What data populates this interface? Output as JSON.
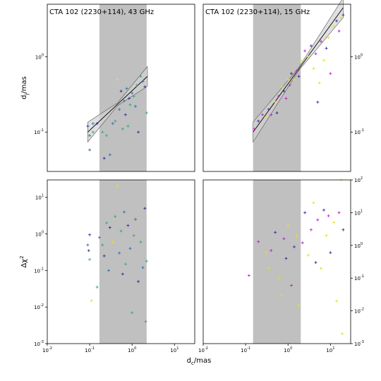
{
  "figure": {
    "xlabel_shared": "d_c/mas",
    "colors": {
      "shade": "#c0c0c0",
      "band": "#d3d3d3",
      "fit_line": "#000000"
    }
  },
  "chart_data": [
    {
      "type": "scatter",
      "panel": "top-left",
      "title": "CTA 102 (2230+114), 43 GHz",
      "ylabel": "d_j/mas",
      "xscale": "log",
      "yscale": "log",
      "xlim": [
        0.01,
        30
      ],
      "ylim": [
        0.03,
        5
      ],
      "x_ticks": [],
      "y_ticks": [
        "10^-1",
        "10^0"
      ],
      "shaded_x": [
        0.17,
        2.2
      ],
      "fit_line": {
        "x": [
          0.09,
          2.3
        ],
        "y": [
          0.1,
          0.55
        ]
      },
      "points": [
        {
          "x": 0.09,
          "y": 0.12,
          "c": "#3a2a9a"
        },
        {
          "x": 0.1,
          "y": 0.09,
          "c": "#2f6fa8"
        },
        {
          "x": 0.1,
          "y": 0.058,
          "c": "#2f6fa8"
        },
        {
          "x": 0.12,
          "y": 0.13,
          "c": "#2f6fa8"
        },
        {
          "x": 0.12,
          "y": 0.1,
          "c": "#33aa77"
        },
        {
          "x": 0.15,
          "y": 0.13,
          "c": "#3a2a9a"
        },
        {
          "x": 0.2,
          "y": 0.1,
          "c": "#33aa77"
        },
        {
          "x": 0.22,
          "y": 0.045,
          "c": "#3a2a9a"
        },
        {
          "x": 0.25,
          "y": 0.09,
          "c": "#33aa77"
        },
        {
          "x": 0.3,
          "y": 0.05,
          "c": "#2f6fa8"
        },
        {
          "x": 0.35,
          "y": 0.13,
          "c": "#2f6fa8"
        },
        {
          "x": 0.4,
          "y": 0.14,
          "c": "#33aa77"
        },
        {
          "x": 0.45,
          "y": 0.5,
          "c": "#e8e020"
        },
        {
          "x": 0.5,
          "y": 0.2,
          "c": "#2f6fa8"
        },
        {
          "x": 0.55,
          "y": 0.35,
          "c": "#3a2a9a"
        },
        {
          "x": 0.6,
          "y": 0.11,
          "c": "#33aa77"
        },
        {
          "x": 0.65,
          "y": 0.26,
          "c": "#2f6fa8"
        },
        {
          "x": 0.7,
          "y": 0.17,
          "c": "#3a2a9a"
        },
        {
          "x": 0.75,
          "y": 0.38,
          "c": "#2f6fa8"
        },
        {
          "x": 0.8,
          "y": 0.12,
          "c": "#33aa77"
        },
        {
          "x": 0.85,
          "y": 0.28,
          "c": "#3a2a9a"
        },
        {
          "x": 0.9,
          "y": 0.23,
          "c": "#33aa77"
        },
        {
          "x": 1.0,
          "y": 0.33,
          "c": "#2f6fa8"
        },
        {
          "x": 1.1,
          "y": 0.3,
          "c": "#33aa77"
        },
        {
          "x": 1.2,
          "y": 0.22,
          "c": "#2f6fa8"
        },
        {
          "x": 1.3,
          "y": 0.42,
          "c": "#33aa77"
        },
        {
          "x": 1.4,
          "y": 0.1,
          "c": "#3a2a9a"
        },
        {
          "x": 1.6,
          "y": 0.55,
          "c": "#33aa77"
        },
        {
          "x": 1.8,
          "y": 0.47,
          "c": "#2f6fa8"
        },
        {
          "x": 2.0,
          "y": 0.4,
          "c": "#3a2a9a"
        },
        {
          "x": 2.2,
          "y": 0.18,
          "c": "#33aa77"
        }
      ]
    },
    {
      "type": "scatter",
      "panel": "top-right",
      "title": "CTA 102 (2230+114), 15 GHz",
      "ylabel": "",
      "xscale": "log",
      "yscale": "log",
      "xlim": [
        0.01,
        30
      ],
      "ylim": [
        0.03,
        5
      ],
      "x_ticks": [],
      "y_ticks": [
        "10^-1",
        "10^0"
      ],
      "shaded_x": [
        0.15,
        2.0
      ],
      "fit_line": {
        "x": [
          0.15,
          20
        ],
        "y": [
          0.1,
          4.5
        ]
      },
      "points": [
        {
          "x": 0.16,
          "y": 0.11,
          "c": "#c020c0"
        },
        {
          "x": 0.2,
          "y": 0.14,
          "c": "#3a2a9a"
        },
        {
          "x": 0.25,
          "y": 0.17,
          "c": "#c020c0"
        },
        {
          "x": 0.3,
          "y": 0.16,
          "c": "#e8e020"
        },
        {
          "x": 0.35,
          "y": 0.2,
          "c": "#3a2a9a"
        },
        {
          "x": 0.4,
          "y": 0.17,
          "c": "#c020c0"
        },
        {
          "x": 0.5,
          "y": 0.25,
          "c": "#e8e020"
        },
        {
          "x": 0.55,
          "y": 0.18,
          "c": "#3a2a9a"
        },
        {
          "x": 0.6,
          "y": 0.3,
          "c": "#c020c0"
        },
        {
          "x": 0.7,
          "y": 0.4,
          "c": "#e8e020"
        },
        {
          "x": 0.8,
          "y": 0.35,
          "c": "#3a2a9a"
        },
        {
          "x": 0.9,
          "y": 0.28,
          "c": "#c020c0"
        },
        {
          "x": 1.0,
          "y": 0.5,
          "c": "#e8e020"
        },
        {
          "x": 1.1,
          "y": 0.42,
          "c": "#c020c0"
        },
        {
          "x": 1.2,
          "y": 0.6,
          "c": "#3a2a9a"
        },
        {
          "x": 1.4,
          "y": 0.5,
          "c": "#e8e020"
        },
        {
          "x": 1.6,
          "y": 0.65,
          "c": "#c020c0"
        },
        {
          "x": 1.8,
          "y": 0.55,
          "c": "#3a2a9a"
        },
        {
          "x": 2.0,
          "y": 0.9,
          "c": "#e8e020"
        },
        {
          "x": 2.5,
          "y": 1.2,
          "c": "#c020c0"
        },
        {
          "x": 3.0,
          "y": 1.0,
          "c": "#e8e020"
        },
        {
          "x": 3.5,
          "y": 1.4,
          "c": "#3a2a9a"
        },
        {
          "x": 4.0,
          "y": 0.7,
          "c": "#e8e020"
        },
        {
          "x": 4.5,
          "y": 1.1,
          "c": "#c020c0"
        },
        {
          "x": 5.0,
          "y": 0.25,
          "c": "#3a2a9a"
        },
        {
          "x": 5.5,
          "y": 0.45,
          "c": "#e8e020"
        },
        {
          "x": 6.0,
          "y": 1.6,
          "c": "#c020c0"
        },
        {
          "x": 7.0,
          "y": 0.9,
          "c": "#e8e020"
        },
        {
          "x": 8.0,
          "y": 1.3,
          "c": "#3a2a9a"
        },
        {
          "x": 9.0,
          "y": 1.8,
          "c": "#e8e020"
        },
        {
          "x": 10.0,
          "y": 0.6,
          "c": "#c020c0"
        },
        {
          "x": 12.0,
          "y": 2.5,
          "c": "#e8e020"
        },
        {
          "x": 14.0,
          "y": 3.0,
          "c": "#3a2a9a"
        },
        {
          "x": 16.0,
          "y": 2.2,
          "c": "#c020c0"
        },
        {
          "x": 18.0,
          "y": 3.3,
          "c": "#e8e020"
        },
        {
          "x": 20.0,
          "y": 3.6,
          "c": "#3a2a9a"
        }
      ]
    },
    {
      "type": "scatter",
      "panel": "bottom-left",
      "title": "",
      "ylabel": "Δχ^2",
      "xscale": "log",
      "yscale": "log",
      "xlim": [
        0.01,
        30
      ],
      "ylim": [
        0.001,
        30
      ],
      "x_ticks": [
        "10^-2",
        "10^-1",
        "10^0",
        "10^1"
      ],
      "y_ticks": [
        "10^-3",
        "10^-2",
        "10^-1",
        "10^0",
        "10^1"
      ],
      "shaded_x": [
        0.17,
        2.2
      ],
      "points": [
        {
          "x": 0.09,
          "y": 0.5,
          "c": "#2f6fa8"
        },
        {
          "x": 0.095,
          "y": 0.35,
          "c": "#3a2a9a"
        },
        {
          "x": 0.1,
          "y": 0.95,
          "c": "#3a2a9a"
        },
        {
          "x": 0.1,
          "y": 0.2,
          "c": "#33aa77"
        },
        {
          "x": 0.11,
          "y": 0.015,
          "c": "#e8e020"
        },
        {
          "x": 0.15,
          "y": 0.035,
          "c": "#33aa77"
        },
        {
          "x": 0.17,
          "y": 0.8,
          "c": "#2f6fa8"
        },
        {
          "x": 0.2,
          "y": 0.5,
          "c": "#33aa77"
        },
        {
          "x": 0.22,
          "y": 0.25,
          "c": "#3a2a9a"
        },
        {
          "x": 0.25,
          "y": 2.0,
          "c": "#33aa77"
        },
        {
          "x": 0.28,
          "y": 0.1,
          "c": "#2f6fa8"
        },
        {
          "x": 0.3,
          "y": 1.5,
          "c": "#3a2a9a"
        },
        {
          "x": 0.35,
          "y": 0.6,
          "c": "#e8e020"
        },
        {
          "x": 0.4,
          "y": 3.0,
          "c": "#33aa77"
        },
        {
          "x": 0.45,
          "y": 20.0,
          "c": "#e8e020"
        },
        {
          "x": 0.5,
          "y": 0.3,
          "c": "#2f6fa8"
        },
        {
          "x": 0.55,
          "y": 1.2,
          "c": "#33aa77"
        },
        {
          "x": 0.6,
          "y": 0.08,
          "c": "#3a2a9a"
        },
        {
          "x": 0.65,
          "y": 4.0,
          "c": "#2f6fa8"
        },
        {
          "x": 0.7,
          "y": 0.15,
          "c": "#33aa77"
        },
        {
          "x": 0.8,
          "y": 1.7,
          "c": "#3a2a9a"
        },
        {
          "x": 0.9,
          "y": 0.4,
          "c": "#2f6fa8"
        },
        {
          "x": 1.0,
          "y": 0.007,
          "c": "#33aa77"
        },
        {
          "x": 1.1,
          "y": 0.9,
          "c": "#33aa77"
        },
        {
          "x": 1.2,
          "y": 2.5,
          "c": "#2f6fa8"
        },
        {
          "x": 1.4,
          "y": 0.05,
          "c": "#3a2a9a"
        },
        {
          "x": 1.6,
          "y": 0.6,
          "c": "#33aa77"
        },
        {
          "x": 1.8,
          "y": 0.12,
          "c": "#2f6fa8"
        },
        {
          "x": 2.0,
          "y": 5.0,
          "c": "#3a2a9a"
        },
        {
          "x": 2.1,
          "y": 0.004,
          "c": "#33aa77"
        },
        {
          "x": 2.2,
          "y": 0.18,
          "c": "#33aa77"
        }
      ]
    },
    {
      "type": "scatter",
      "panel": "bottom-right",
      "title": "",
      "ylabel": "",
      "xscale": "log",
      "yscale": "log",
      "xlim": [
        0.01,
        30
      ],
      "ylim": [
        0.001,
        100
      ],
      "x_ticks": [
        "10^-2",
        "10^-1",
        "10^0",
        "10^1"
      ],
      "y_ticks": [
        "10^-3",
        "10^-2",
        "10^-1",
        "10^0",
        "10^1",
        "10^2"
      ],
      "shaded_x": [
        0.15,
        2.0
      ],
      "points": [
        {
          "x": 0.12,
          "y": 0.12,
          "c": "#c020c0"
        },
        {
          "x": 0.2,
          "y": 1.3,
          "c": "#c020c0"
        },
        {
          "x": 0.3,
          "y": 0.6,
          "c": "#e8e020"
        },
        {
          "x": 0.35,
          "y": 0.2,
          "c": "#e8e020"
        },
        {
          "x": 0.4,
          "y": 0.7,
          "c": "#c020c0"
        },
        {
          "x": 0.5,
          "y": 2.5,
          "c": "#3a2a9a"
        },
        {
          "x": 0.6,
          "y": 0.1,
          "c": "#e8e020"
        },
        {
          "x": 0.7,
          "y": 0.03,
          "c": "#e8e020"
        },
        {
          "x": 0.8,
          "y": 1.6,
          "c": "#c020c0"
        },
        {
          "x": 0.9,
          "y": 0.4,
          "c": "#3a2a9a"
        },
        {
          "x": 1.0,
          "y": 4.0,
          "c": "#e8e020"
        },
        {
          "x": 1.2,
          "y": 0.06,
          "c": "#c020c0"
        },
        {
          "x": 1.4,
          "y": 0.9,
          "c": "#3a2a9a"
        },
        {
          "x": 1.6,
          "y": 2.0,
          "c": "#e8e020"
        },
        {
          "x": 1.8,
          "y": 0.015,
          "c": "#e8e020"
        },
        {
          "x": 2.2,
          "y": 1.2,
          "c": "#c020c0"
        },
        {
          "x": 2.5,
          "y": 10.0,
          "c": "#3a2a9a"
        },
        {
          "x": 3.0,
          "y": 0.5,
          "c": "#e8e020"
        },
        {
          "x": 3.5,
          "y": 3.0,
          "c": "#c020c0"
        },
        {
          "x": 4.0,
          "y": 20.0,
          "c": "#e8e020"
        },
        {
          "x": 4.5,
          "y": 0.3,
          "c": "#3a2a9a"
        },
        {
          "x": 5.0,
          "y": 6.0,
          "c": "#c020c0"
        },
        {
          "x": 6.0,
          "y": 0.2,
          "c": "#e8e020"
        },
        {
          "x": 7.0,
          "y": 12.0,
          "c": "#3a2a9a"
        },
        {
          "x": 8.0,
          "y": 2.0,
          "c": "#e8e020"
        },
        {
          "x": 9.0,
          "y": 8.0,
          "c": "#c020c0"
        },
        {
          "x": 10.0,
          "y": 0.6,
          "c": "#3a2a9a"
        },
        {
          "x": 12.0,
          "y": 5.0,
          "c": "#e8e020"
        },
        {
          "x": 14.0,
          "y": 0.02,
          "c": "#e8e020"
        },
        {
          "x": 16.0,
          "y": 10.0,
          "c": "#c020c0"
        },
        {
          "x": 18.0,
          "y": 100.0,
          "c": "#e8e020"
        },
        {
          "x": 19.0,
          "y": 0.002,
          "c": "#e8e020"
        },
        {
          "x": 20.0,
          "y": 3.0,
          "c": "#3a2a9a"
        }
      ]
    }
  ]
}
